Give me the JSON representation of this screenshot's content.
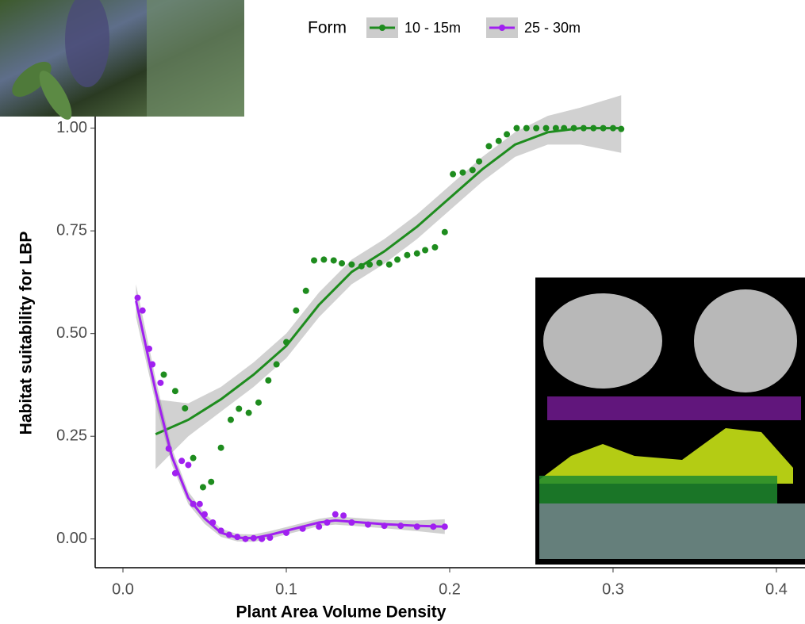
{
  "chart_data": {
    "type": "scatter",
    "x_label": "Plant Area Volume Density",
    "y_label": "Habitat suitability  for LBP",
    "legend_title": "Form",
    "xlim": [
      -0.017,
      0.4175
    ],
    "ylim": [
      -0.07,
      1.09
    ],
    "xticks": [
      {
        "value": 0,
        "label": "0.0"
      },
      0.1,
      0.2,
      0.3,
      0.4
    ],
    "yticks": [
      {
        "value": 0,
        "label": "0.00"
      },
      {
        "value": 0.25,
        "label": "0.25"
      },
      {
        "value": 0.5,
        "label": "0.50"
      },
      0.75,
      {
        "value": 1,
        "label": "1.00"
      }
    ],
    "grid": false,
    "series": [
      {
        "name": "10 - 15m",
        "color": "#1e8c1e",
        "x": [
          0.025,
          0.032,
          0.038,
          0.043,
          0.049,
          0.054,
          0.06,
          0.066,
          0.071,
          0.077,
          0.083,
          0.089,
          0.094,
          0.1,
          0.106,
          0.112,
          0.117,
          0.123,
          0.129,
          0.134,
          0.14,
          0.146,
          0.151,
          0.157,
          0.163,
          0.168,
          0.174,
          0.18,
          0.185,
          0.191,
          0.197,
          0.202,
          0.208,
          0.214,
          0.218,
          0.224,
          0.23,
          0.235,
          0.241,
          0.247,
          0.253,
          0.259,
          0.265,
          0.27,
          0.276,
          0.282,
          0.288,
          0.294,
          0.3,
          0.305
        ],
        "values": [
          0.4,
          0.36,
          0.318,
          0.197,
          0.126,
          0.139,
          0.222,
          0.29,
          0.317,
          0.307,
          0.332,
          0.386,
          0.425,
          0.479,
          0.556,
          0.604,
          0.678,
          0.68,
          0.678,
          0.671,
          0.668,
          0.664,
          0.668,
          0.672,
          0.668,
          0.68,
          0.691,
          0.695,
          0.703,
          0.71,
          0.747,
          0.888,
          0.892,
          0.898,
          0.919,
          0.956,
          0.969,
          0.985,
          1.0,
          1.0,
          1.0,
          1.0,
          1.0,
          1.0,
          1.0,
          1.0,
          1.0,
          1.0,
          1.0,
          0.998
        ],
        "smooth_x": [
          0.02,
          0.04,
          0.06,
          0.08,
          0.1,
          0.12,
          0.14,
          0.16,
          0.18,
          0.2,
          0.22,
          0.24,
          0.26,
          0.28,
          0.305
        ],
        "smooth": [
          0.255,
          0.29,
          0.34,
          0.4,
          0.47,
          0.57,
          0.65,
          0.7,
          0.76,
          0.83,
          0.9,
          0.96,
          0.99,
          1.0,
          1.0
        ],
        "ci_lower": [
          0.17,
          0.25,
          0.31,
          0.37,
          0.44,
          0.54,
          0.62,
          0.67,
          0.73,
          0.8,
          0.87,
          0.93,
          0.96,
          0.96,
          0.94
        ],
        "ci_upper": [
          0.34,
          0.33,
          0.37,
          0.43,
          0.5,
          0.6,
          0.68,
          0.73,
          0.79,
          0.86,
          0.93,
          0.99,
          1.03,
          1.05,
          1.08
        ]
      },
      {
        "name": "25 - 30m",
        "color": "#a020f0",
        "x": [
          0.009,
          0.012,
          0.016,
          0.018,
          0.023,
          0.028,
          0.032,
          0.036,
          0.04,
          0.043,
          0.047,
          0.05,
          0.055,
          0.06,
          0.065,
          0.07,
          0.075,
          0.08,
          0.085,
          0.09,
          0.1,
          0.11,
          0.12,
          0.125,
          0.13,
          0.135,
          0.14,
          0.15,
          0.16,
          0.17,
          0.18,
          0.19,
          0.197
        ],
        "values": [
          0.587,
          0.556,
          0.463,
          0.425,
          0.38,
          0.22,
          0.16,
          0.19,
          0.18,
          0.085,
          0.085,
          0.06,
          0.04,
          0.02,
          0.01,
          0.005,
          0.0,
          0.002,
          0.0,
          0.003,
          0.015,
          0.025,
          0.03,
          0.04,
          0.06,
          0.057,
          0.04,
          0.035,
          0.032,
          0.032,
          0.03,
          0.03,
          0.03
        ],
        "smooth_x": [
          0.008,
          0.02,
          0.03,
          0.04,
          0.05,
          0.06,
          0.07,
          0.08,
          0.09,
          0.1,
          0.11,
          0.12,
          0.13,
          0.14,
          0.16,
          0.18,
          0.197
        ],
        "smooth": [
          0.58,
          0.36,
          0.2,
          0.1,
          0.05,
          0.015,
          0.003,
          0.002,
          0.01,
          0.02,
          0.03,
          0.04,
          0.045,
          0.042,
          0.036,
          0.032,
          0.03
        ],
        "ci_lower": [
          0.54,
          0.33,
          0.18,
          0.085,
          0.037,
          0.005,
          -0.006,
          -0.007,
          0.001,
          0.011,
          0.021,
          0.031,
          0.035,
          0.032,
          0.026,
          0.019,
          0.012
        ],
        "ci_upper": [
          0.62,
          0.39,
          0.22,
          0.115,
          0.063,
          0.025,
          0.012,
          0.011,
          0.019,
          0.029,
          0.039,
          0.049,
          0.055,
          0.052,
          0.046,
          0.045,
          0.048
        ]
      }
    ]
  }
}
